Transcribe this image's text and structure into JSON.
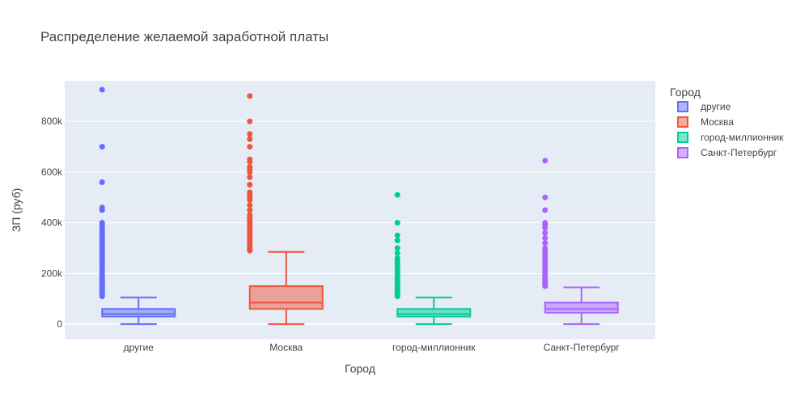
{
  "chart_data": {
    "type": "box",
    "title": "Распределение желаемой заработной платы",
    "xlabel": "Город",
    "ylabel": "ЗП (руб)",
    "ylim": [
      -60000,
      960000
    ],
    "y_ticks": [
      0,
      200000,
      400000,
      600000,
      800000
    ],
    "y_tick_labels": [
      "0",
      "200k",
      "400k",
      "600k",
      "800k"
    ],
    "grid": true,
    "legend": {
      "title": "Город",
      "position": "top-right"
    },
    "categories": [
      "другие",
      "Москва",
      "город-миллионник",
      "Санкт-Петербург"
    ],
    "series": [
      {
        "name": "другие",
        "color": "#636efa",
        "fill": "rgba(99,110,250,0.5)",
        "min": 0,
        "q1": 30000,
        "median": 40000,
        "q3": 60000,
        "max": 105000,
        "outliers": [
          110000,
          115000,
          120000,
          125000,
          130000,
          135000,
          140000,
          145000,
          150000,
          155000,
          160000,
          165000,
          170000,
          175000,
          180000,
          190000,
          200000,
          210000,
          220000,
          230000,
          240000,
          250000,
          260000,
          270000,
          280000,
          290000,
          300000,
          310000,
          320000,
          330000,
          340000,
          350000,
          360000,
          370000,
          380000,
          390000,
          400000,
          450000,
          460000,
          560000,
          700000,
          925000
        ]
      },
      {
        "name": "Москва",
        "color": "#ef553b",
        "fill": "rgba(239,85,59,0.5)",
        "min": 0,
        "q1": 60000,
        "median": 85000,
        "q3": 150000,
        "max": 285000,
        "outliers": [
          290000,
          295000,
          300000,
          310000,
          320000,
          330000,
          340000,
          350000,
          360000,
          370000,
          380000,
          390000,
          400000,
          410000,
          420000,
          430000,
          450000,
          470000,
          490000,
          500000,
          510000,
          520000,
          550000,
          580000,
          600000,
          610000,
          620000,
          640000,
          650000,
          700000,
          730000,
          750000,
          800000,
          900000
        ]
      },
      {
        "name": "город-миллионник",
        "color": "#00cc96",
        "fill": "rgba(0,204,150,0.5)",
        "min": 0,
        "q1": 30000,
        "median": 40000,
        "q3": 60000,
        "max": 105000,
        "outliers": [
          110000,
          115000,
          120000,
          125000,
          130000,
          135000,
          140000,
          145000,
          150000,
          160000,
          170000,
          180000,
          190000,
          200000,
          210000,
          220000,
          230000,
          240000,
          250000,
          260000,
          280000,
          300000,
          330000,
          350000,
          400000,
          510000
        ]
      },
      {
        "name": "Санкт-Петербург",
        "color": "#ab63fa",
        "fill": "rgba(171,99,250,0.5)",
        "min": 0,
        "q1": 45000,
        "median": 60000,
        "q3": 85000,
        "max": 145000,
        "outliers": [
          150000,
          155000,
          160000,
          165000,
          170000,
          175000,
          180000,
          190000,
          200000,
          210000,
          220000,
          230000,
          240000,
          250000,
          260000,
          270000,
          280000,
          290000,
          300000,
          320000,
          340000,
          360000,
          380000,
          390000,
          400000,
          450000,
          500000,
          645000
        ]
      }
    ]
  }
}
